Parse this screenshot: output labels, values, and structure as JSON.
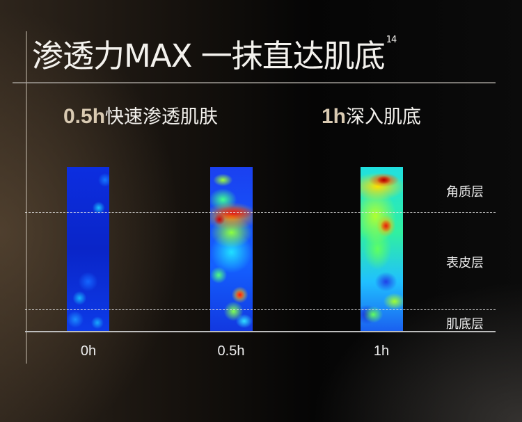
{
  "title": {
    "text": "渗透力MAX 一抹直达肌底",
    "footnote": "14"
  },
  "subtitles": [
    {
      "time": "0.5h",
      "text": "快速渗透肌肤"
    },
    {
      "time": "1h",
      "text": "深入肌底"
    }
  ],
  "time_labels": [
    "0h",
    "0.5h",
    "1h"
  ],
  "layer_labels": [
    "角质层",
    "表皮层",
    "肌底层"
  ],
  "heatmap_legend_colors": {
    "low": "#0c2ee0",
    "mid": "#40ff90",
    "high": "#e01818"
  }
}
